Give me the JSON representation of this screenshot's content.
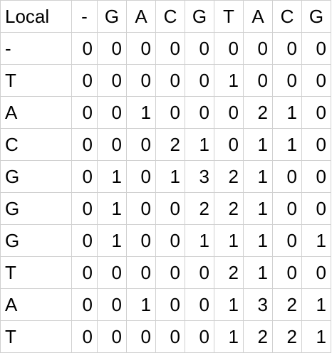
{
  "sheet": {
    "corner_label": "Local",
    "column_headers": [
      "-",
      "G",
      "A",
      "C",
      "G",
      "T",
      "A",
      "C",
      "G"
    ],
    "rows": [
      {
        "label": "-",
        "values": [
          "0",
          "0",
          "0",
          "0",
          "0",
          "0",
          "0",
          "0",
          "0"
        ]
      },
      {
        "label": "T",
        "values": [
          "0",
          "0",
          "0",
          "0",
          "0",
          "1",
          "0",
          "0",
          "0"
        ]
      },
      {
        "label": "A",
        "values": [
          "0",
          "0",
          "1",
          "0",
          "0",
          "0",
          "2",
          "1",
          "0"
        ]
      },
      {
        "label": "C",
        "values": [
          "0",
          "0",
          "0",
          "2",
          "1",
          "0",
          "1",
          "1",
          "0"
        ]
      },
      {
        "label": "G",
        "values": [
          "0",
          "1",
          "0",
          "1",
          "3",
          "2",
          "1",
          "0",
          "0"
        ]
      },
      {
        "label": "G",
        "values": [
          "0",
          "1",
          "0",
          "0",
          "2",
          "2",
          "1",
          "0",
          "0"
        ]
      },
      {
        "label": "G",
        "values": [
          "0",
          "1",
          "0",
          "0",
          "1",
          "1",
          "1",
          "0",
          "1"
        ]
      },
      {
        "label": "T",
        "values": [
          "0",
          "0",
          "0",
          "0",
          "0",
          "2",
          "1",
          "0",
          "0"
        ]
      },
      {
        "label": "A",
        "values": [
          "0",
          "0",
          "1",
          "0",
          "0",
          "1",
          "3",
          "2",
          "1"
        ]
      },
      {
        "label": "T",
        "values": [
          "0",
          "0",
          "0",
          "0",
          "0",
          "1",
          "2",
          "2",
          "1"
        ]
      }
    ]
  }
}
